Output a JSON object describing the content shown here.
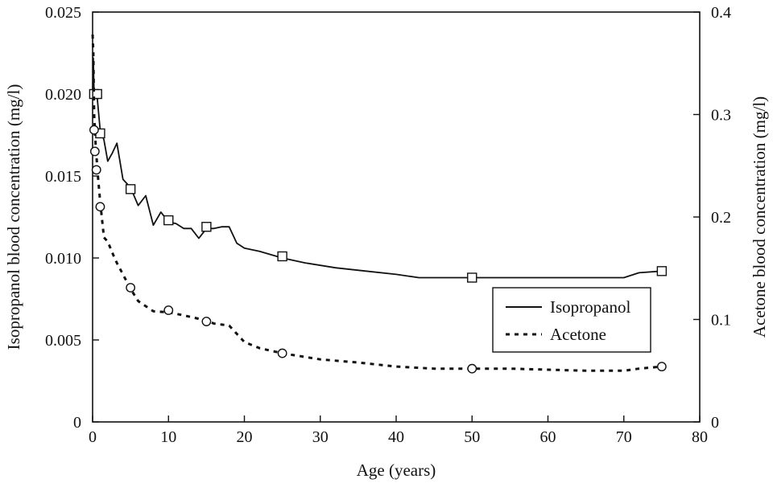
{
  "chart_data": {
    "type": "line",
    "xlabel": "Age (years)",
    "ylabel_left": "Isopropanol blood concentration (mg/l)",
    "ylabel_right": "Acetone blood concentration (mg/l)",
    "xlim": [
      0,
      80
    ],
    "ylim_left": [
      0,
      0.025
    ],
    "ylim_right": [
      0,
      0.4
    ],
    "x_ticks": [
      0,
      10,
      20,
      30,
      40,
      50,
      60,
      70,
      80
    ],
    "x_tick_labels": [
      "0",
      "10",
      "20",
      "30",
      "40",
      "50",
      "60",
      "70",
      "80"
    ],
    "y_left_ticks": [
      0,
      0.005,
      0.01,
      0.015,
      0.02,
      0.025
    ],
    "y_left_tick_labels": [
      "0",
      "0.005",
      "0.010",
      "0.015",
      "0.020",
      "0.025"
    ],
    "y_right_ticks": [
      0,
      0.1,
      0.2,
      0.3,
      0.4
    ],
    "y_right_tick_labels": [
      "0",
      "0.1",
      "0.2",
      "0.3",
      "0.4"
    ],
    "grid": false,
    "legend_position": "lower-right",
    "series": [
      {
        "name": "Isopropanol",
        "axis": "left",
        "line_style": "solid",
        "marker": "square",
        "curve": [
          [
            0,
            0.0198
          ],
          [
            0.1,
            0.0222
          ],
          [
            0.2,
            0.0198
          ],
          [
            0.4,
            0.0201
          ],
          [
            0.6,
            0.0198
          ],
          [
            1,
            0.0178
          ],
          [
            1.5,
            0.0172
          ],
          [
            2,
            0.0159
          ],
          [
            2.6,
            0.0164
          ],
          [
            3.2,
            0.017
          ],
          [
            4,
            0.0148
          ],
          [
            5,
            0.0143
          ],
          [
            6,
            0.0132
          ],
          [
            7,
            0.0138
          ],
          [
            8,
            0.012
          ],
          [
            9,
            0.0128
          ],
          [
            10,
            0.0122
          ],
          [
            11,
            0.0121
          ],
          [
            12,
            0.0118
          ],
          [
            13,
            0.0118
          ],
          [
            14,
            0.0112
          ],
          [
            15,
            0.0118
          ],
          [
            16,
            0.0118
          ],
          [
            17,
            0.0119
          ],
          [
            18,
            0.0119
          ],
          [
            19,
            0.0109
          ],
          [
            20,
            0.0106
          ],
          [
            22,
            0.0104
          ],
          [
            25,
            0.01
          ],
          [
            28,
            0.0097
          ],
          [
            32,
            0.0094
          ],
          [
            36,
            0.0092
          ],
          [
            40,
            0.009
          ],
          [
            43,
            0.0088
          ],
          [
            50,
            0.0088
          ],
          [
            55,
            0.0088
          ],
          [
            60,
            0.0088
          ],
          [
            65,
            0.0088
          ],
          [
            70,
            0.0088
          ],
          [
            72,
            0.0091
          ],
          [
            75,
            0.0092
          ]
        ],
        "markers": [
          [
            0.2,
            0.02
          ],
          [
            0.6,
            0.02
          ],
          [
            1,
            0.0176
          ],
          [
            5,
            0.0142
          ],
          [
            10,
            0.0123
          ],
          [
            15,
            0.0119
          ],
          [
            25,
            0.0101
          ],
          [
            50,
            0.0088
          ],
          [
            75,
            0.0092
          ]
        ]
      },
      {
        "name": "Acetone",
        "axis": "right",
        "line_style": "dashed",
        "marker": "circle",
        "curve": [
          [
            0,
            0.378
          ],
          [
            0.1,
            0.36
          ],
          [
            0.2,
            0.3
          ],
          [
            0.4,
            0.27
          ],
          [
            0.7,
            0.24
          ],
          [
            1,
            0.215
          ],
          [
            1.5,
            0.18
          ],
          [
            2,
            0.176
          ],
          [
            3,
            0.158
          ],
          [
            5,
            0.13
          ],
          [
            6,
            0.118
          ],
          [
            8,
            0.108
          ],
          [
            10,
            0.107
          ],
          [
            12,
            0.104
          ],
          [
            15,
            0.099
          ],
          [
            16,
            0.096
          ],
          [
            18,
            0.094
          ],
          [
            19,
            0.086
          ],
          [
            20,
            0.078
          ],
          [
            22,
            0.072
          ],
          [
            25,
            0.067
          ],
          [
            30,
            0.061
          ],
          [
            35,
            0.058
          ],
          [
            40,
            0.054
          ],
          [
            45,
            0.052
          ],
          [
            50,
            0.052
          ],
          [
            55,
            0.052
          ],
          [
            60,
            0.051
          ],
          [
            65,
            0.05
          ],
          [
            70,
            0.05
          ],
          [
            72,
            0.052
          ],
          [
            75,
            0.054
          ]
        ],
        "markers": [
          [
            0.2,
            0.285
          ],
          [
            0.3,
            0.264
          ],
          [
            0.5,
            0.246
          ],
          [
            1,
            0.21
          ],
          [
            5,
            0.131
          ],
          [
            10,
            0.109
          ],
          [
            15,
            0.098
          ],
          [
            25,
            0.067
          ],
          [
            50,
            0.052
          ],
          [
            75,
            0.054
          ]
        ]
      }
    ]
  }
}
